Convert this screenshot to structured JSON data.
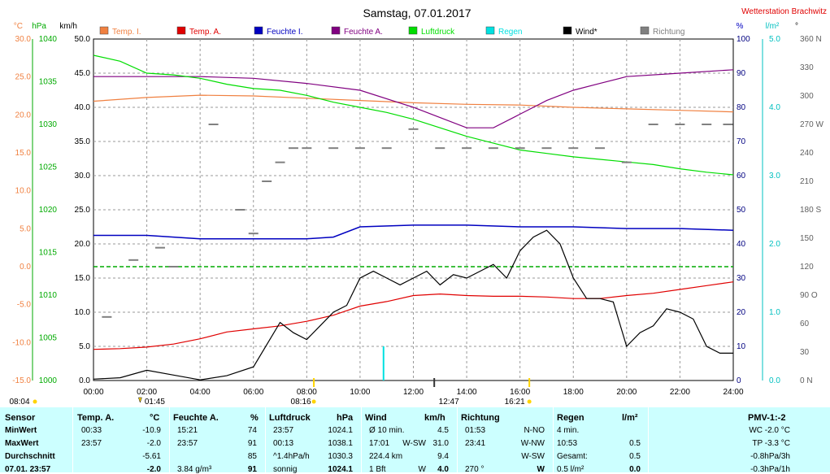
{
  "title": "Samstag, 07.01.2017",
  "station": "Wetterstation Brachwitz",
  "units": {
    "celsius": "°C",
    "hpa": "hPa",
    "kmh": "km/h",
    "percent": "%",
    "lm2": "l/m²",
    "deg": "°"
  },
  "legend": [
    {
      "label": "Temp. I.",
      "color": "#f08040"
    },
    {
      "label": "Temp. A.",
      "color": "#e00000"
    },
    {
      "label": "Feuchte I.",
      "color": "#0000c0"
    },
    {
      "label": "Feuchte A.",
      "color": "#800080"
    },
    {
      "label": "Luftdruck",
      "color": "#00dd00"
    },
    {
      "label": "Regen",
      "color": "#00e0e0"
    },
    {
      "label": "Wind*",
      "color": "#000000"
    },
    {
      "label": "Richtung",
      "color": "#808080"
    }
  ],
  "axes": {
    "temp_ticks": [
      "30.0",
      "25.0",
      "20.0",
      "15.0",
      "10.0",
      "5.0",
      "0.0",
      "-5.0",
      "-10.0",
      "-15.0"
    ],
    "hpa_ticks": [
      "1040",
      "1035",
      "1030",
      "1025",
      "1020",
      "1015",
      "1010",
      "1005",
      "1000"
    ],
    "kmh_ticks": [
      "50.0",
      "45.0",
      "40.0",
      "35.0",
      "30.0",
      "25.0",
      "20.0",
      "15.0",
      "10.0",
      "5.0",
      "0.0"
    ],
    "pct_ticks": [
      "100",
      "90",
      "80",
      "70",
      "60",
      "50",
      "40",
      "30",
      "20",
      "10",
      "0"
    ],
    "rain_ticks": [
      "5.0",
      "4.0",
      "3.0",
      "2.0",
      "1.0",
      "0.0"
    ],
    "dir_ticks": [
      "360 N",
      "330",
      "300",
      "270 W",
      "240",
      "210",
      "180 S",
      "150",
      "120",
      "90 O",
      "60",
      "30",
      "0 N"
    ],
    "time_ticks": [
      "00:00",
      "02:00",
      "04:00",
      "06:00",
      "08:00",
      "10:00",
      "12:00",
      "14:00",
      "16:00",
      "18:00",
      "20:00",
      "22:00",
      "24:00"
    ]
  },
  "markers": {
    "sunrise": "08:04",
    "sunrise_top": "08:16",
    "tmin": "01:45",
    "mid": "12:47",
    "sunset": "16:21"
  },
  "chart_data": {
    "type": "line",
    "x_unit": "hours",
    "x_range": [
      0,
      24
    ],
    "series": [
      {
        "name": "Temp. I.",
        "axis": "temp",
        "ylim": [
          -15,
          30
        ],
        "x": [
          0,
          2,
          4,
          6,
          8,
          10,
          12,
          14,
          16,
          18,
          20,
          22,
          24
        ],
        "values": [
          21.8,
          22.3,
          22.6,
          22.5,
          22.2,
          21.9,
          21.6,
          21.4,
          21.3,
          21.0,
          20.8,
          20.6,
          20.4
        ]
      },
      {
        "name": "Temp. A.",
        "axis": "temp",
        "ylim": [
          -15,
          30
        ],
        "x": [
          0,
          1,
          2,
          3,
          4,
          5,
          6,
          7,
          8,
          9,
          10,
          11,
          12,
          13,
          14,
          15,
          16,
          17,
          18,
          19,
          20,
          21,
          22,
          23,
          24
        ],
        "values": [
          -10.9,
          -10.8,
          -10.6,
          -10.2,
          -9.5,
          -8.6,
          -8.2,
          -7.8,
          -7.2,
          -6.4,
          -5.2,
          -4.6,
          -3.8,
          -3.6,
          -3.8,
          -3.9,
          -3.9,
          -4.0,
          -4.2,
          -4.2,
          -3.8,
          -3.5,
          -3.0,
          -2.5,
          -2.0
        ]
      },
      {
        "name": "Feuchte I.",
        "axis": "pct",
        "ylim": [
          0,
          100
        ],
        "x": [
          0,
          2,
          4,
          6,
          8,
          9,
          10,
          12,
          14,
          16,
          18,
          20,
          22,
          24
        ],
        "values": [
          42.5,
          42.5,
          41.5,
          41.5,
          41.5,
          42,
          45,
          45.5,
          45.5,
          45,
          45,
          44.5,
          44.5,
          44
        ]
      },
      {
        "name": "Feuchte A.",
        "axis": "pct",
        "ylim": [
          0,
          100
        ],
        "x": [
          0,
          2,
          4,
          6,
          8,
          10,
          12,
          13,
          14,
          15,
          16,
          17,
          18,
          19,
          20,
          22,
          24
        ],
        "values": [
          89,
          89,
          89,
          88.5,
          87,
          85,
          80,
          77,
          74,
          74,
          78,
          82,
          85,
          87,
          89,
          90,
          91
        ]
      },
      {
        "name": "Luftdruck",
        "axis": "hpa",
        "ylim": [
          1000,
          1040
        ],
        "x": [
          0,
          1,
          2,
          3,
          4,
          5,
          6,
          7,
          8,
          9,
          10,
          11,
          12,
          13,
          14,
          15,
          16,
          17,
          18,
          19,
          20,
          21,
          22,
          23,
          24
        ],
        "values": [
          1038.1,
          1037.4,
          1036.0,
          1035.8,
          1035.4,
          1034.7,
          1034.2,
          1034.0,
          1033.4,
          1032.6,
          1032.0,
          1031.4,
          1030.6,
          1029.6,
          1028.6,
          1027.8,
          1027.0,
          1026.6,
          1026.2,
          1025.9,
          1025.6,
          1025.3,
          1024.8,
          1024.4,
          1024.1
        ]
      },
      {
        "name": "Wind*",
        "axis": "kmh",
        "ylim": [
          0,
          50
        ],
        "x": [
          0,
          1,
          2,
          3,
          4,
          5,
          6,
          7,
          7.5,
          8,
          8.5,
          9,
          9.5,
          10,
          10.5,
          11,
          11.5,
          12,
          12.5,
          13,
          13.5,
          14,
          14.5,
          15,
          15.5,
          16,
          16.5,
          17,
          17.5,
          18,
          18.5,
          19,
          19.5,
          20,
          20.5,
          21,
          21.5,
          22,
          22.5,
          23,
          23.5,
          24
        ],
        "values": [
          0.2,
          0.4,
          1.5,
          0.8,
          0.1,
          0.7,
          2.0,
          8.5,
          7.0,
          6.0,
          8.0,
          10.0,
          11.0,
          15.0,
          16.0,
          15.0,
          14.0,
          15.0,
          16.0,
          14.0,
          15.5,
          15.0,
          16.0,
          17.0,
          15.0,
          19.0,
          21.0,
          22.0,
          20.0,
          15.0,
          12.0,
          12.0,
          11.5,
          5.0,
          7.0,
          8.0,
          10.5,
          10.0,
          9.0,
          5.0,
          4.0,
          4.0
        ]
      },
      {
        "name": "Regen",
        "axis": "rain",
        "ylim": [
          0,
          5
        ],
        "x": [
          10.88
        ],
        "values": [
          0.5
        ]
      },
      {
        "name": "Richtung",
        "axis": "dir",
        "ylim": [
          0,
          360
        ],
        "x": [
          0.5,
          1.5,
          2.5,
          3,
          4.5,
          5.5,
          6,
          6.5,
          7,
          7.5,
          8,
          9,
          10,
          11,
          12,
          13,
          14,
          15,
          16,
          17,
          18,
          19,
          20,
          21,
          22,
          23,
          23.8
        ],
        "values": [
          67,
          127,
          140,
          120,
          270,
          180,
          155,
          210,
          230,
          245,
          245,
          245,
          245,
          245,
          265,
          245,
          245,
          245,
          245,
          245,
          245,
          245,
          230,
          270,
          270,
          270,
          270
        ]
      }
    ],
    "guide_lines": [
      {
        "axis": "temp",
        "value": 0.0,
        "color": "#00aa00"
      }
    ],
    "grid": true
  },
  "table": {
    "headers": {
      "sensor": "Sensor",
      "temp_a": "Temp. A.",
      "temp_unit": "°C",
      "feuchte": "Feuchte A.",
      "feuchte_unit": "%",
      "druck": "Luftdruck",
      "druck_unit": "hPa",
      "wind": "Wind",
      "wind_unit": "km/h",
      "richtung": "Richtung",
      "regen": "Regen",
      "regen_unit": "l/m²",
      "pmv": "PMV-1:-2"
    },
    "row_labels": [
      "MinWert",
      "MaxWert",
      "Durchschnitt",
      "07.01. 23:57"
    ],
    "temp_a": [
      [
        "00:33",
        "-10.9"
      ],
      [
        "23:57",
        "-2.0"
      ],
      [
        "",
        "-5.61"
      ],
      [
        "",
        "-2.0"
      ]
    ],
    "feuchte": [
      [
        "15:21",
        "74"
      ],
      [
        "23:57",
        "91"
      ],
      [
        "",
        "85"
      ],
      [
        "3.84 g/m³",
        "91"
      ]
    ],
    "druck": [
      [
        "23:57",
        "1024.1"
      ],
      [
        "00:13",
        "1038.1"
      ],
      [
        "^1.4hPa/h",
        "1030.3"
      ],
      [
        "sonnig",
        "1024.1"
      ]
    ],
    "wind": [
      [
        "Ø 10 min.",
        "",
        "4.5"
      ],
      [
        "17:01",
        "W-SW",
        "31.0"
      ],
      [
        "224.4 km",
        "",
        "9.4"
      ],
      [
        "1 Bft",
        "W",
        "4.0"
      ]
    ],
    "richtung": [
      [
        "01:53",
        "N-NO"
      ],
      [
        "23:41",
        "W-NW"
      ],
      [
        "",
        "W-SW"
      ],
      [
        "270 °",
        "W"
      ]
    ],
    "regen": [
      [
        "4 min.",
        ""
      ],
      [
        "10:53",
        "0.5"
      ],
      [
        "Gesamt:",
        "0.5"
      ],
      [
        "0.5 l/m²",
        "0.0"
      ]
    ],
    "pmv": [
      "WC -2.0 °C",
      "TP -3.3 °C",
      "-0.8hPa/3h",
      "-0.3hPa/1h"
    ]
  }
}
